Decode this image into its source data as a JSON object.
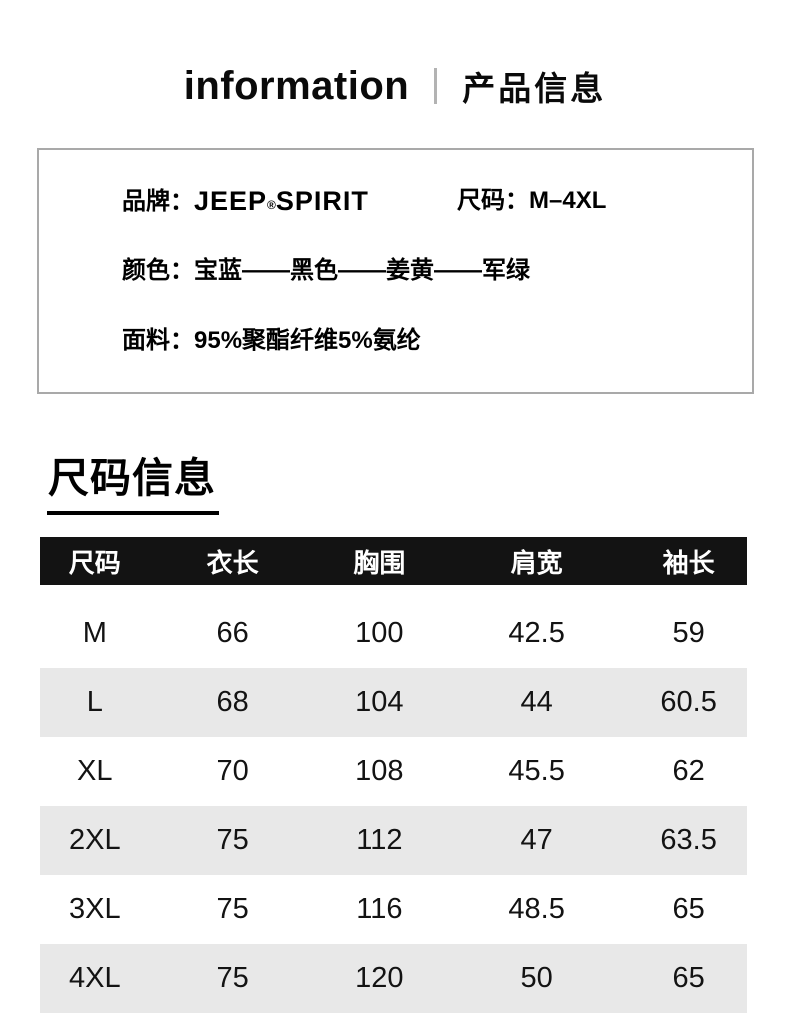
{
  "header": {
    "title_en": "information",
    "title_zh": "产品信息"
  },
  "product_info": {
    "brand_label": "品牌：",
    "brand": {
      "part1": "JEEP",
      "reg": "®",
      "part2": "SPIRIT"
    },
    "size_label": "尺码：",
    "size_value": "M–4XL",
    "color_label": "颜色：",
    "color_value": "宝蓝——黑色——姜黄——军绿",
    "fabric_label": "面料：",
    "fabric_value": "95%聚酯纤维5%氨纶"
  },
  "size_section": {
    "heading": "尺码信息"
  },
  "size_table": {
    "headers": [
      "尺码",
      "衣长",
      "胸围",
      "肩宽",
      "袖长"
    ],
    "rows": [
      [
        "M",
        "66",
        "100",
        "42.5",
        "59"
      ],
      [
        "L",
        "68",
        "104",
        "44",
        "60.5"
      ],
      [
        "XL",
        "70",
        "108",
        "45.5",
        "62"
      ],
      [
        "2XL",
        "75",
        "112",
        "47",
        "63.5"
      ],
      [
        "3XL",
        "75",
        "116",
        "48.5",
        "65"
      ],
      [
        "4XL",
        "75",
        "120",
        "50",
        "65"
      ]
    ]
  },
  "colors": {
    "table_header_bg": "#131313",
    "table_header_text": "#ffffff",
    "table_alt_row_bg": "#e8e8e8",
    "info_box_border": "#a9a9a9",
    "title_divider": "#b3b3b3",
    "text": "#000000"
  }
}
